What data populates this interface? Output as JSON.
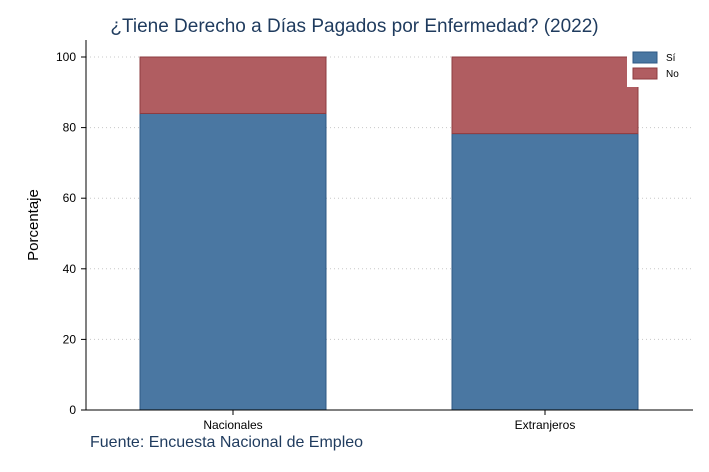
{
  "chart_data": {
    "type": "bar",
    "stacked": true,
    "title": "¿Tiene Derecho a Días Pagados por Enfermedad? (2022)",
    "xlabel": "",
    "ylabel": "Porcentaje",
    "categories": [
      "Nacionales",
      "Extranjeros"
    ],
    "series": [
      {
        "name": "Sí",
        "values": [
          84,
          78.3
        ],
        "color": "#4a77a2"
      },
      {
        "name": "No",
        "values": [
          16,
          21.7
        ],
        "color": "#b05d61"
      }
    ],
    "ylim": [
      0,
      100
    ],
    "yticks": [
      0,
      20,
      40,
      60,
      80,
      100
    ],
    "grid": "horizontal dotted",
    "legend_position": "top-right",
    "source": "Fuente: Encuesta Nacional de Empleo"
  }
}
